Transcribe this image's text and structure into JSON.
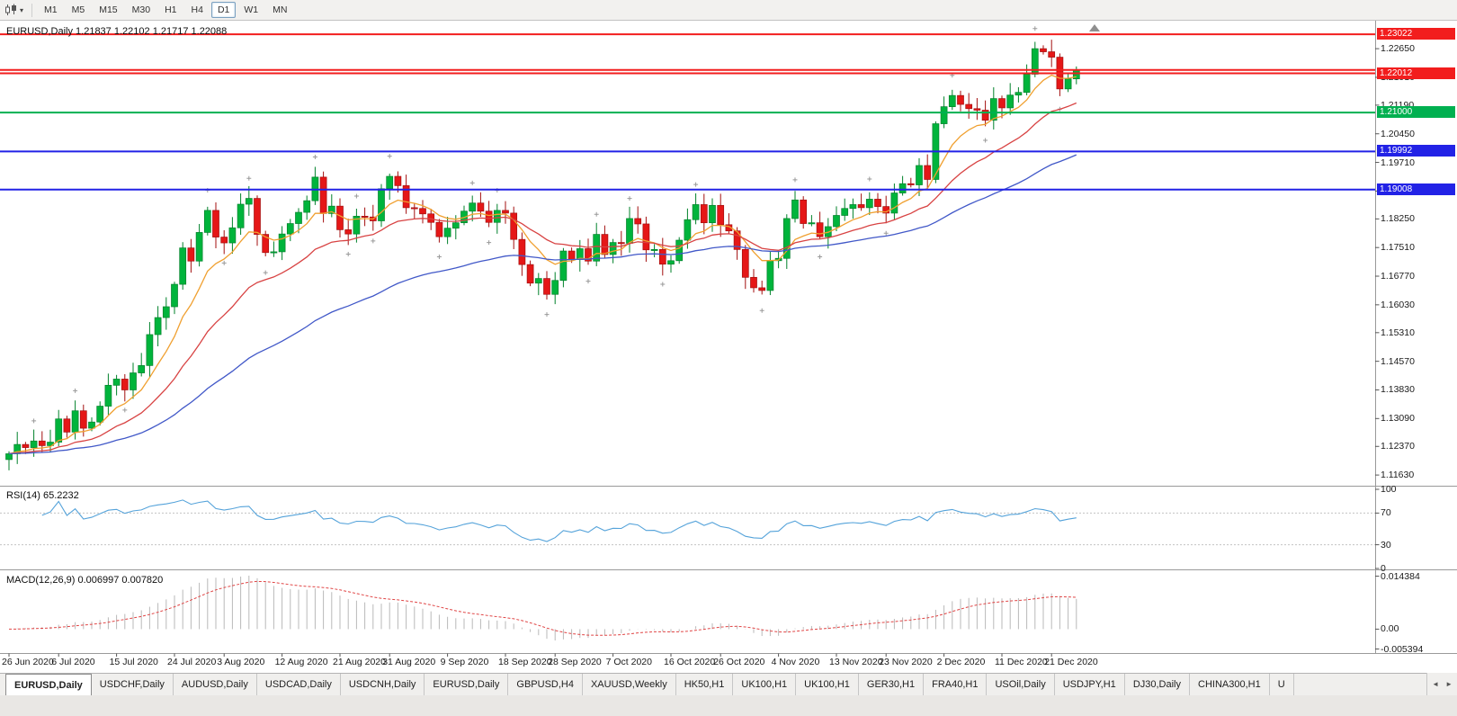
{
  "toolbar": {
    "caret_glyph": "▾",
    "timeframes": [
      {
        "label": "M1",
        "active": false
      },
      {
        "label": "M5",
        "active": false
      },
      {
        "label": "M15",
        "active": false
      },
      {
        "label": "M30",
        "active": false
      },
      {
        "label": "H1",
        "active": false
      },
      {
        "label": "H4",
        "active": false
      },
      {
        "label": "D1",
        "active": true
      },
      {
        "label": "W1",
        "active": false
      },
      {
        "label": "MN",
        "active": false
      }
    ]
  },
  "chart": {
    "title": {
      "symbol": "EURUSD,Daily",
      "open": "1.21837",
      "high": "1.22102",
      "low": "1.21717",
      "close": "1.22088"
    },
    "price_axis_labels": [
      "1.22650",
      "1.21910",
      "1.21190",
      "1.20450",
      "1.19710",
      "1.18970",
      "1.18250",
      "1.17510",
      "1.16770",
      "1.16030",
      "1.15310",
      "1.14570",
      "1.13830",
      "1.13090",
      "1.12370",
      "1.11630"
    ],
    "price_tags": [
      {
        "label": "1.23022",
        "price": 1.23022,
        "color": "#f21d1d"
      },
      {
        "label": "1.22012",
        "price": 1.22012,
        "color": "#f21d1d"
      },
      {
        "label": "1.21000",
        "price": 1.21,
        "color": "#00b050"
      },
      {
        "label": "1.19992",
        "price": 1.19992,
        "color": "#2222e6"
      },
      {
        "label": "1.19008",
        "price": 1.19008,
        "color": "#2222e6"
      }
    ],
    "hlines": [
      {
        "price": 1.23022,
        "color": "#f21d1d",
        "width": 2
      },
      {
        "price": 1.221,
        "color": "#f21d1d",
        "width": 2
      },
      {
        "price": 1.22012,
        "color": "#f21d1d",
        "width": 2
      },
      {
        "price": 1.21,
        "color": "#00b050",
        "width": 2
      },
      {
        "price": 1.19992,
        "color": "#2222e6",
        "width": 2
      },
      {
        "price": 1.19008,
        "color": "#2222e6",
        "width": 2
      }
    ]
  },
  "chart_data": {
    "type": "candlestick",
    "symbol": "EURUSD",
    "period": "Daily",
    "ylim": [
      1.114,
      1.2335
    ],
    "closes": [
      1.1218,
      1.1242,
      1.1234,
      1.1251,
      1.1239,
      1.1248,
      1.1308,
      1.1274,
      1.1329,
      1.1284,
      1.13,
      1.1341,
      1.1395,
      1.1411,
      1.1383,
      1.1427,
      1.1446,
      1.1526,
      1.157,
      1.1598,
      1.1656,
      1.175,
      1.1716,
      1.179,
      1.1847,
      1.1778,
      1.1763,
      1.1802,
      1.1863,
      1.1878,
      1.1785,
      1.1738,
      1.174,
      1.1786,
      1.1813,
      1.1842,
      1.1872,
      1.1933,
      1.1839,
      1.1858,
      1.1797,
      1.1786,
      1.1832,
      1.183,
      1.182,
      1.1903,
      1.1935,
      1.1911,
      1.1854,
      1.1852,
      1.1838,
      1.1816,
      1.1779,
      1.1801,
      1.1815,
      1.1845,
      1.1866,
      1.1845,
      1.1816,
      1.1847,
      1.184,
      1.1772,
      1.1707,
      1.1659,
      1.1671,
      1.163,
      1.1666,
      1.1742,
      1.172,
      1.1748,
      1.1716,
      1.1785,
      1.1733,
      1.1764,
      1.1762,
      1.1826,
      1.1812,
      1.1745,
      1.1746,
      1.1708,
      1.1717,
      1.177,
      1.1823,
      1.1862,
      1.1815,
      1.186,
      1.181,
      1.1794,
      1.1746,
      1.1674,
      1.1647,
      1.164,
      1.1717,
      1.1723,
      1.1826,
      1.1874,
      1.1813,
      1.1815,
      1.1779,
      1.1805,
      1.1834,
      1.1852,
      1.1862,
      1.1854,
      1.1876,
      1.1857,
      1.184,
      1.1892,
      1.1916,
      1.1913,
      1.1963,
      1.1927,
      1.2071,
      1.2115,
      1.2144,
      1.2121,
      1.211,
      1.2106,
      1.208,
      1.2136,
      1.2112,
      1.2145,
      1.2152,
      1.2199,
      1.2265,
      1.2257,
      1.2243,
      1.2161,
      1.2187,
      1.2209
    ],
    "x_dates": [
      {
        "label": "26 Jun 2020",
        "index": 0
      },
      {
        "label": "6 Jul 2020",
        "index": 6
      },
      {
        "label": "15 Jul 2020",
        "index": 13
      },
      {
        "label": "24 Jul 2020",
        "index": 20
      },
      {
        "label": "3 Aug 2020",
        "index": 26
      },
      {
        "label": "12 Aug 2020",
        "index": 33
      },
      {
        "label": "21 Aug 2020",
        "index": 40
      },
      {
        "label": "31 Aug 2020",
        "index": 46
      },
      {
        "label": "9 Sep 2020",
        "index": 53
      },
      {
        "label": "18 Sep 2020",
        "index": 60
      },
      {
        "label": "28 Sep 2020",
        "index": 66
      },
      {
        "label": "7 Oct 2020",
        "index": 73
      },
      {
        "label": "16 Oct 2020",
        "index": 80
      },
      {
        "label": "26 Oct 2020",
        "index": 86
      },
      {
        "label": "4 Nov 2020",
        "index": 93
      },
      {
        "label": "13 Nov 2020",
        "index": 100
      },
      {
        "label": "23 Nov 2020",
        "index": 106
      },
      {
        "label": "2 Dec 2020",
        "index": 113
      },
      {
        "label": "11 Dec 2020",
        "index": 120
      },
      {
        "label": "21 Dec 2020",
        "index": 126
      }
    ],
    "moving_averages": [
      {
        "name": "EMA8",
        "period": 8,
        "color": "#f0a030"
      },
      {
        "name": "EMA20",
        "period": 20,
        "color": "#d84343"
      },
      {
        "name": "EMA50",
        "period": 50,
        "color": "#4158c8"
      }
    ],
    "rsi": {
      "label": "RSI(14) 65.2232",
      "period": 14,
      "value": 65.2232,
      "levels": [
        70,
        30
      ],
      "axis_labels": [
        "100",
        "70",
        "30",
        "0"
      ],
      "color": "#55a3da",
      "ylim": [
        0,
        100
      ]
    },
    "macd": {
      "label": "MACD(12,26,9) 0.006997 0.007820",
      "fast": 12,
      "slow": 26,
      "signal_period": 9,
      "value_macd": 0.006997,
      "value_signal": 0.00782,
      "axis_labels": [
        "0.014384",
        "0.00",
        "-0.005394"
      ],
      "ylim": [
        -0.006,
        0.015
      ],
      "hist_color": "#b9b9b9",
      "signal_color": "#e04545"
    }
  },
  "tab_bar": {
    "scroll_left": "◄",
    "scroll_right": "►",
    "tabs": [
      {
        "label": "EURUSD,Daily",
        "active": true
      },
      {
        "label": "USDCHF,Daily",
        "active": false
      },
      {
        "label": "AUDUSD,Daily",
        "active": false
      },
      {
        "label": "USDCAD,Daily",
        "active": false
      },
      {
        "label": "USDCNH,Daily",
        "active": false
      },
      {
        "label": "EURUSD,Daily",
        "active": false
      },
      {
        "label": "GBPUSD,H4",
        "active": false
      },
      {
        "label": "XAUUSD,Weekly",
        "active": false
      },
      {
        "label": "HK50,H1",
        "active": false
      },
      {
        "label": "UK100,H1",
        "active": false
      },
      {
        "label": "UK100,H1",
        "active": false
      },
      {
        "label": "GER30,H1",
        "active": false
      },
      {
        "label": "FRA40,H1",
        "active": false
      },
      {
        "label": "USOil,Daily",
        "active": false
      },
      {
        "label": "USDJPY,H1",
        "active": false
      },
      {
        "label": "DJ30,Daily",
        "active": false
      },
      {
        "label": "CHINA300,H1",
        "active": false
      },
      {
        "label": "U",
        "active": false
      }
    ]
  },
  "theme": {
    "bull": "#00b43c",
    "bull_border": "#00812a",
    "bear": "#e51717",
    "bear_border": "#a30f0f",
    "separator": "#9a9a9a",
    "tick": "#555555",
    "fractal_cross": "#999999",
    "rsi_level_line": "#c3c3c3"
  }
}
